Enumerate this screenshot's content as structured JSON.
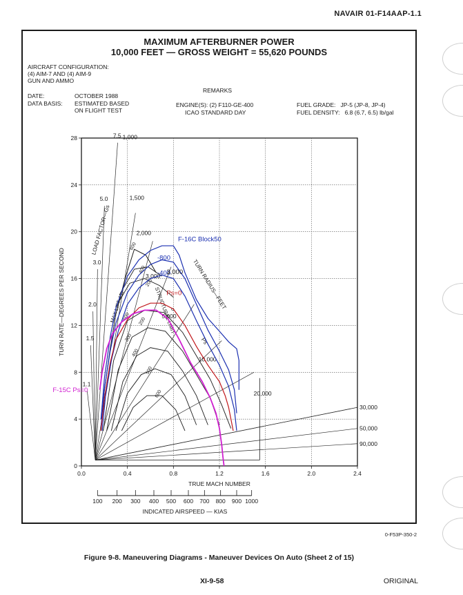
{
  "header": {
    "doc_id": "NAVAIR 01-F14AAP-1.1"
  },
  "chart_title": {
    "line1": "MAXIMUM AFTERBURNER POWER",
    "line2": "10,000 FEET — GROSS WEIGHT = 55,620 POUNDS"
  },
  "aircraft_config": {
    "label": "AIRCRAFT CONFIGURATION:",
    "line1": "(4) AIM-7 AND (4) AIM-9",
    "line2": "GUN AND AMMO"
  },
  "date": {
    "label": "DATE:",
    "value": "OCTOBER 1988"
  },
  "data_basis": {
    "label": "DATA BASIS:",
    "value1": "ESTIMATED BASED",
    "value2": "ON FLIGHT TEST"
  },
  "remarks": {
    "label": "REMARKS",
    "engine": "ENGINE(S): (2) F110-GE-400",
    "atmosphere": "ICAO STANDARD DAY"
  },
  "fuel": {
    "grade": "FUEL GRADE:   JP-5 (JP-8, JP-4)",
    "density": "FUEL DENSITY:   6.8 (6.7, 6.5) lb/gal"
  },
  "chart_data": {
    "type": "line",
    "xlabel": "TRUE MACH NUMBER",
    "ylabel": "TURN RATE—DEGREES PER SECOND",
    "xlim": [
      0.0,
      2.4
    ],
    "ylim": [
      0,
      28
    ],
    "x_ticks": [
      "0.0",
      "0.4",
      "0.8",
      "1.2",
      "1.6",
      "2.0",
      "2.4"
    ],
    "y_ticks": [
      "0",
      "4",
      "8",
      "12",
      "16",
      "20",
      "24",
      "28"
    ],
    "grid": true,
    "secondary_axis": {
      "label": "INDICATED AIRSPEED — KIAS",
      "ticks": [
        {
          "label": "100",
          "mach": 0.14
        },
        {
          "label": "200",
          "mach": 0.31
        },
        {
          "label": "300",
          "mach": 0.47
        },
        {
          "label": "400",
          "mach": 0.63
        },
        {
          "label": "500",
          "mach": 0.78
        },
        {
          "label": "600",
          "mach": 0.93
        },
        {
          "label": "700",
          "mach": 1.07
        },
        {
          "label": "800",
          "mach": 1.21
        },
        {
          "label": "900",
          "mach": 1.35
        },
        {
          "label": "1000",
          "mach": 1.48
        }
      ]
    },
    "load_factor_label": "LOAD FACTOR—Gs",
    "load_factor_values": [
      {
        "label": "7.5",
        "x": 0.275,
        "y": 28.2
      },
      {
        "label": "5.0",
        "x": 0.16,
        "y": 22.8
      },
      {
        "label": "3.0",
        "x": 0.1,
        "y": 17.4
      },
      {
        "label": "2.0",
        "x": 0.06,
        "y": 13.8
      },
      {
        "label": "1.5",
        "x": 0.04,
        "y": 10.9
      },
      {
        "label": "1.1",
        "x": 0.01,
        "y": 7.0
      }
    ],
    "turn_radius_label": "TURN RADIUS—FEET",
    "turn_radius_values": [
      {
        "label": "1,000",
        "x": 0.34,
        "y": 28.1,
        "line_end": [
          0.47,
          21.6
        ]
      },
      {
        "label": "1,500",
        "x": 0.4,
        "y": 22.9,
        "line_end": [
          0.62,
          19.2
        ]
      },
      {
        "label": "2,000",
        "x": 0.46,
        "y": 19.9,
        "line_end": [
          0.78,
          17.0
        ]
      },
      {
        "label": "3,000",
        "x": 0.54,
        "y": 16.2,
        "line_end": [
          0.98,
          13.8
        ]
      },
      {
        "label": "5,000",
        "x": 0.68,
        "y": 12.8,
        "line_end": [
          1.22,
          10.7
        ]
      },
      {
        "label": "10,000",
        "x": 1.0,
        "y": 9.1,
        "line_end": [
          1.5,
          8.0
        ]
      },
      {
        "label": "20,000",
        "x": 1.48,
        "y": 6.2,
        "line_end": [
          2.4,
          5.0
        ]
      },
      {
        "label": "30,000",
        "x": 2.4,
        "y": 5.0,
        "line_end": [
          2.4,
          5.0
        ]
      },
      {
        "label": "50,000",
        "x": 2.4,
        "y": 3.2,
        "line_end": [
          2.4,
          3.2
        ]
      },
      {
        "label": "90,000",
        "x": 2.4,
        "y": 1.9,
        "line_end": [
          2.4,
          1.9
        ]
      }
    ],
    "max_lift_label": "MAX LIFT",
    "structural_label": "STRUCTURAL LIMIT",
    "ps_label": "Ps",
    "ps_value_labels": [
      {
        "label": "0",
        "x": 0.8,
        "y": 13.2
      },
      {
        "label": "200",
        "x": 0.58,
        "y": 15.3
      },
      {
        "label": "400",
        "x": 0.52,
        "y": 16.4
      },
      {
        "label": "600",
        "x": 0.44,
        "y": 18.4
      },
      {
        "label": "200",
        "x": 0.52,
        "y": 12.0
      },
      {
        "label": "300",
        "x": 0.4,
        "y": 10.6
      },
      {
        "label": "400",
        "x": 0.46,
        "y": 9.3
      },
      {
        "label": "500",
        "x": 0.58,
        "y": 7.8
      },
      {
        "label": "600",
        "x": 0.66,
        "y": 5.8
      },
      {
        "label": "400",
        "x": 0.34,
        "y": 14.2
      },
      {
        "label": "600",
        "x": 0.38,
        "y": 12.4
      }
    ],
    "series": [
      {
        "name": "F-16C Block50",
        "color": "#1a2fb0",
        "x": [
          0.17,
          0.2,
          0.25,
          0.3,
          0.4,
          0.5,
          0.6,
          0.7,
          0.8,
          0.85,
          0.9,
          1.0,
          1.1,
          1.2,
          1.28,
          1.35,
          1.37,
          1.37,
          1.37
        ],
        "y": [
          4.0,
          7.5,
          11.0,
          13.5,
          16.2,
          17.6,
          18.4,
          18.8,
          18.8,
          18.0,
          16.5,
          14.2,
          12.6,
          11.5,
          10.6,
          10.0,
          9.0,
          7.5,
          6.5
        ]
      },
      {
        "name": "F-16C 800",
        "color": "#1a2fb0",
        "x": [
          0.17,
          0.2,
          0.25,
          0.3,
          0.4,
          0.5,
          0.6,
          0.7,
          0.8,
          0.9,
          1.0,
          1.1,
          1.2,
          1.28,
          1.33,
          1.35
        ],
        "y": [
          3.3,
          6.6,
          9.8,
          12.2,
          14.8,
          16.3,
          17.2,
          17.6,
          17.4,
          16.0,
          13.8,
          11.6,
          9.8,
          8.2,
          6.5,
          4.5
        ]
      },
      {
        "name": "F-16C 400",
        "color": "#1a2fb0",
        "x": [
          0.18,
          0.21,
          0.26,
          0.32,
          0.4,
          0.5,
          0.6,
          0.7,
          0.8,
          0.9,
          1.0,
          1.1,
          1.2,
          1.28,
          1.33,
          1.35
        ],
        "y": [
          3.0,
          6.0,
          9.0,
          11.5,
          13.8,
          15.2,
          16.0,
          16.3,
          16.0,
          14.5,
          12.4,
          10.4,
          8.6,
          6.8,
          4.8,
          3.0
        ]
      },
      {
        "name": "Ps=0",
        "color": "#c0171b",
        "x": [
          0.17,
          0.2,
          0.25,
          0.3,
          0.4,
          0.5,
          0.6,
          0.7,
          0.8,
          0.9,
          1.0,
          1.1,
          1.2,
          1.25,
          1.28,
          1.3,
          1.32
        ],
        "y": [
          3.0,
          5.8,
          8.8,
          10.8,
          12.5,
          13.5,
          13.9,
          13.9,
          13.4,
          12.0,
          10.2,
          8.6,
          7.2,
          6.0,
          5.0,
          4.0,
          3.0
        ]
      },
      {
        "name": "F-15C Ps=0",
        "color": "#d01fd0",
        "x": [
          0.16,
          0.18,
          0.22,
          0.27,
          0.35,
          0.45,
          0.55,
          0.65,
          0.75,
          0.85,
          0.95,
          1.05,
          1.12,
          1.17,
          1.2,
          1.22,
          1.23,
          1.24
        ],
        "y": [
          6.5,
          8.0,
          10.0,
          11.3,
          12.3,
          13.0,
          13.3,
          13.3,
          12.6,
          10.8,
          8.8,
          7.2,
          5.8,
          4.5,
          3.2,
          1.8,
          0.8,
          0.0
        ]
      }
    ],
    "annotations": [
      {
        "text": "F-16C Block50",
        "x": 0.84,
        "y": 19.2,
        "color": "#1a2fb0"
      },
      {
        "text": "-800",
        "x": 0.66,
        "y": 17.6,
        "color": "#1a2fb0"
      },
      {
        "text": "-400",
        "x": 0.66,
        "y": 16.3,
        "color": "#1a2fb0"
      },
      {
        "text": "3,000",
        "x": 0.74,
        "y": 16.4,
        "color": "#1a1a1a"
      },
      {
        "text": "Ps=0",
        "x": 0.74,
        "y": 14.6,
        "color": "#c0171b"
      },
      {
        "text": "F-15C Ps=0",
        "x": -0.25,
        "y": 6.3,
        "color": "#d01fd0"
      }
    ]
  },
  "fig_id": "0-F53P-350-2",
  "caption": "Figure 9-8.  Maneuvering Diagrams - Maneuver Devices On Auto (Sheet 2 of 15)",
  "footer": {
    "page": "XI-9-58",
    "status": "ORIGINAL"
  }
}
